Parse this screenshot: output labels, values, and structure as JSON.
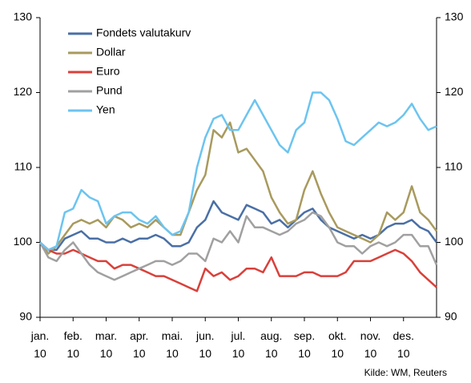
{
  "chart_data": {
    "type": "line",
    "source": "Kilde: WM, Reuters",
    "x": [
      0,
      0.25,
      0.5,
      0.75,
      1,
      1.25,
      1.5,
      1.75,
      2,
      2.25,
      2.5,
      2.75,
      3,
      3.25,
      3.5,
      3.75,
      4,
      4.25,
      4.5,
      4.75,
      5,
      5.25,
      5.5,
      5.75,
      6,
      6.25,
      6.5,
      6.75,
      7,
      7.25,
      7.5,
      7.75,
      8,
      8.25,
      8.5,
      8.75,
      9,
      9.25,
      9.5,
      9.75,
      10,
      10.25,
      10.5,
      10.75,
      11,
      11.25,
      11.5,
      11.75,
      12
    ],
    "xlim": [
      0,
      12
    ],
    "xticks": [
      {
        "value": 0,
        "label": "jan. 10"
      },
      {
        "value": 1,
        "label": "feb. 10"
      },
      {
        "value": 2,
        "label": "mar. 10"
      },
      {
        "value": 3,
        "label": "apr. 10"
      },
      {
        "value": 4,
        "label": "mai. 10"
      },
      {
        "value": 5,
        "label": "jun. 10"
      },
      {
        "value": 6,
        "label": "jul. 10"
      },
      {
        "value": 7,
        "label": "aug. 10"
      },
      {
        "value": 8,
        "label": "sep. 10"
      },
      {
        "value": 9,
        "label": "okt. 10"
      },
      {
        "value": 10,
        "label": "nov. 10"
      },
      {
        "value": 11,
        "label": "des. 10"
      }
    ],
    "ylim": [
      90,
      130
    ],
    "yticks": [
      90,
      100,
      110,
      120,
      130
    ],
    "y2lim": [
      90,
      130
    ],
    "y2ticks": [
      90,
      100,
      110,
      120,
      130
    ],
    "legend": "upper left",
    "series": [
      {
        "name": "Fondets valutakurv",
        "color": "#4a6fa5",
        "values": [
          100,
          99,
          99,
          100.5,
          101,
          101.5,
          100.5,
          100.5,
          100,
          100,
          100.5,
          100,
          100.5,
          100.5,
          101,
          100.5,
          99.5,
          99.5,
          100,
          102,
          103,
          105.5,
          104,
          103.5,
          103,
          105,
          104.5,
          104,
          102.5,
          103,
          102,
          103,
          104,
          104.5,
          103,
          102,
          101.5,
          101,
          100.5,
          101,
          100.5,
          101,
          102,
          102.5,
          102.5,
          103,
          102,
          101.5,
          100
        ]
      },
      {
        "name": "Dollar",
        "color": "#a89a5e",
        "values": [
          100,
          98.5,
          99.5,
          101,
          102.5,
          103,
          102.5,
          103,
          102,
          103.5,
          103,
          102,
          102.5,
          102,
          103,
          102,
          101,
          101,
          104,
          107,
          109,
          115,
          114,
          116,
          112,
          112.5,
          111,
          109.5,
          106,
          104,
          102.5,
          103,
          107,
          109.5,
          106.5,
          104,
          102,
          101.5,
          101,
          100.5,
          100,
          101,
          104,
          103,
          104,
          107.5,
          104,
          103,
          101.5
        ]
      },
      {
        "name": "Euro",
        "color": "#d9403a",
        "values": [
          100,
          99,
          98.5,
          98.5,
          99,
          98.5,
          98,
          97.5,
          97.5,
          96.5,
          97,
          97,
          96.5,
          96,
          95.5,
          95.5,
          95,
          94.5,
          94,
          93.5,
          96.5,
          95.5,
          96,
          95,
          95.5,
          96.5,
          96.5,
          96,
          98,
          95.5,
          95.5,
          95.5,
          96,
          96,
          95.5,
          95.5,
          95.5,
          96,
          97.5,
          97.5,
          97.5,
          98,
          98.5,
          99,
          98.5,
          97.5,
          96,
          95,
          94
        ]
      },
      {
        "name": "Pund",
        "color": "#a0a0a0",
        "values": [
          100,
          98,
          97.5,
          99,
          100,
          98.5,
          97,
          96,
          95.5,
          95,
          95.5,
          96,
          96.5,
          97,
          97.5,
          97.5,
          97,
          97.5,
          98.5,
          98.5,
          97.5,
          100.5,
          100,
          101.5,
          100,
          103.5,
          102,
          102,
          101.5,
          101,
          101.5,
          102.5,
          103,
          104,
          103.5,
          102,
          100,
          99.5,
          99.5,
          98.5,
          99.5,
          100,
          99.5,
          100,
          101,
          101,
          99.5,
          99.5,
          97
        ]
      },
      {
        "name": "Yen",
        "color": "#6cc4f0",
        "values": [
          100,
          99,
          99.5,
          104,
          104.5,
          107,
          106,
          105.5,
          102.5,
          103.5,
          104,
          104,
          103,
          102.5,
          103.5,
          102,
          101,
          101.5,
          104,
          110,
          114,
          116.5,
          117,
          115,
          115,
          117,
          119,
          117,
          115,
          113,
          112,
          115,
          116,
          120,
          120,
          119,
          116.5,
          113.5,
          113,
          114,
          115,
          116,
          115.5,
          116,
          117,
          118.5,
          116.5,
          115,
          115.5
        ]
      }
    ]
  }
}
